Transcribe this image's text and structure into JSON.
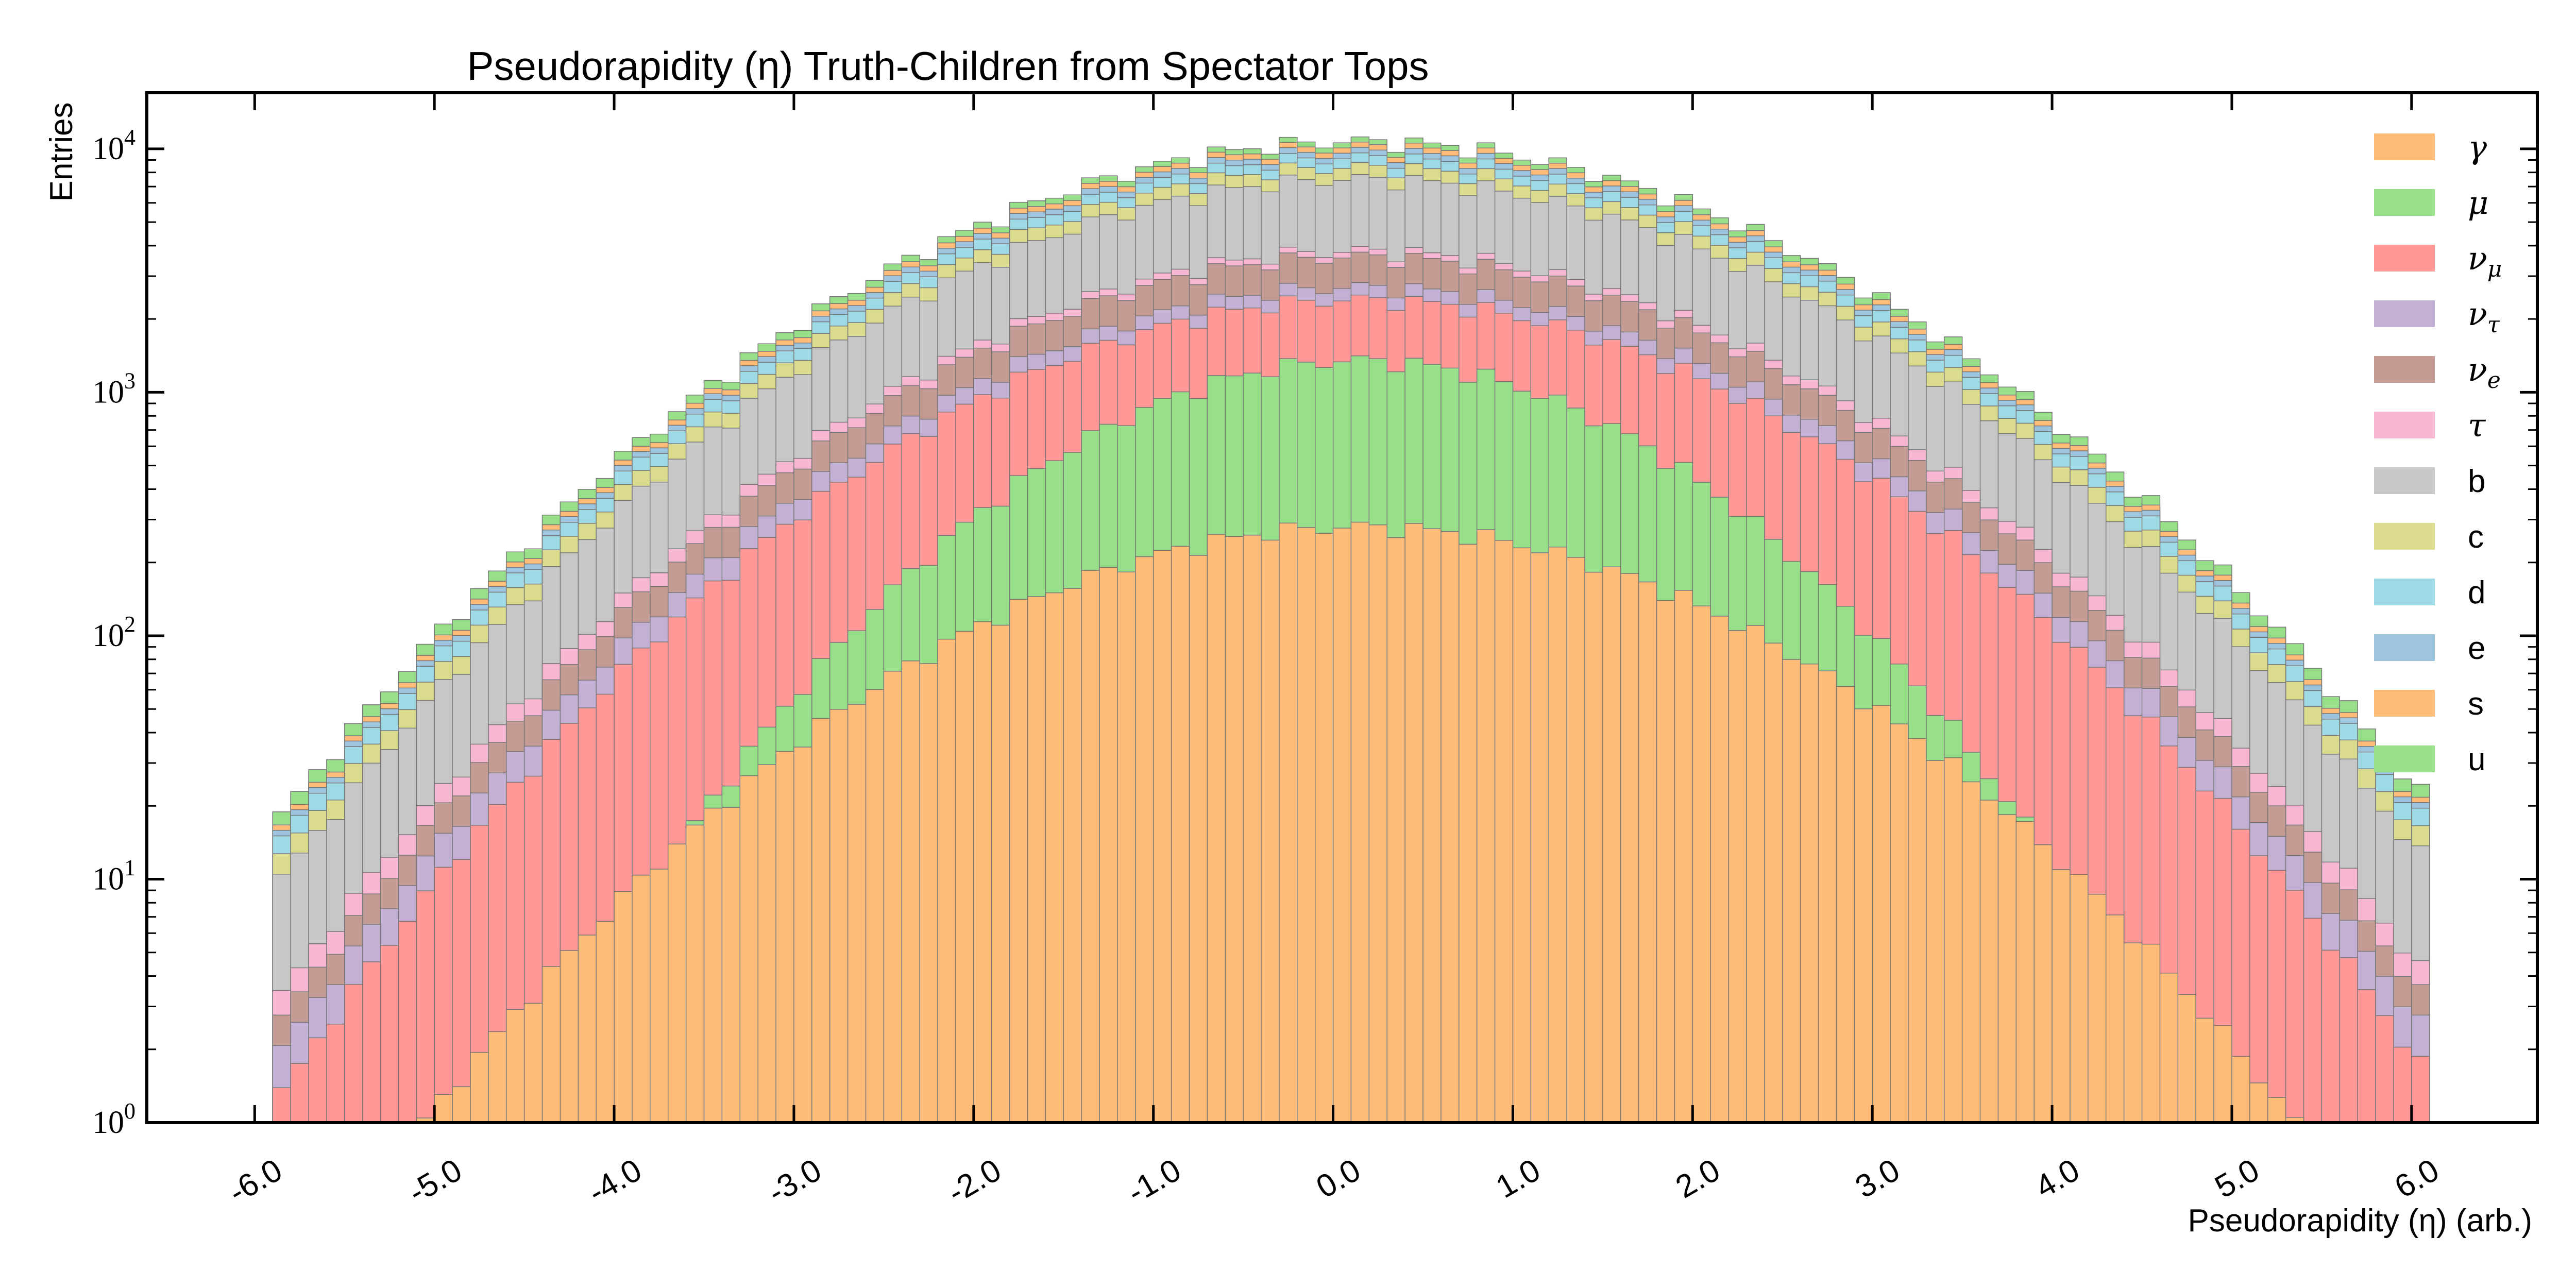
{
  "chart_data": {
    "type": "bar",
    "subtype": "stacked-histogram",
    "title": "Pseudorapidity (η) Truth-Children from Spectator Tops",
    "xlabel": "Pseudorapidity (η) (arb.)",
    "ylabel": "Entries",
    "yscale": "log",
    "ylim": [
      1,
      17000
    ],
    "xlim": [
      -6.6,
      6.7
    ],
    "bin_edges_range": [
      -5.9,
      6.1
    ],
    "grid": false,
    "legend_position": "top-right",
    "x_ticks": [
      "-6.0",
      "-5.0",
      "-4.0",
      "-3.0",
      "-2.0",
      "-1.0",
      "0.0",
      "1.0",
      "2.0",
      "3.0",
      "4.0",
      "5.0",
      "6.0"
    ],
    "x_tick_values": [
      -6,
      -5,
      -4,
      -3,
      -2,
      -1,
      0,
      1,
      2,
      3,
      4,
      5,
      6
    ],
    "y_ticks": [
      {
        "value": 1,
        "base": "10",
        "exp": "0"
      },
      {
        "value": 10,
        "base": "10",
        "exp": "1"
      },
      {
        "value": 100,
        "base": "10",
        "exp": "2"
      },
      {
        "value": 1000,
        "base": "10",
        "exp": "3"
      },
      {
        "value": 10000,
        "base": "10",
        "exp": "4"
      }
    ],
    "series": [
      {
        "name": "γ",
        "color": "#ffbb78"
      },
      {
        "name": "μ",
        "color": "#98df8a"
      },
      {
        "name": "νμ",
        "color": "#ff9896"
      },
      {
        "name": "ντ",
        "color": "#c5b0d5"
      },
      {
        "name": "νe",
        "color": "#c49c94"
      },
      {
        "name": "τ",
        "color": "#f7b6d2"
      },
      {
        "name": "b",
        "color": "#c7c7c7"
      },
      {
        "name": "c",
        "color": "#dbdb8d"
      },
      {
        "name": "d",
        "color": "#9edae5"
      },
      {
        "name": "e",
        "color": "#9ec5e0"
      },
      {
        "name": "s",
        "color": "#ffbb78"
      },
      {
        "name": "u",
        "color": "#98df8a"
      }
    ],
    "legend": [
      {
        "label": "γ",
        "math": true,
        "color": "#ffbb78"
      },
      {
        "label": "μ",
        "math": true,
        "color": "#98df8a"
      },
      {
        "label": "ν",
        "sub": "μ",
        "math": true,
        "color": "#ff9896"
      },
      {
        "label": "ν",
        "sub": "τ",
        "math": true,
        "color": "#c5b0d5"
      },
      {
        "label": "ν",
        "sub": "e",
        "math": true,
        "color": "#c49c94"
      },
      {
        "label": "τ",
        "math": true,
        "color": "#f7b6d2"
      },
      {
        "label": "b",
        "math": false,
        "color": "#c7c7c7"
      },
      {
        "label": "c",
        "math": false,
        "color": "#dbdb8d"
      },
      {
        "label": "d",
        "math": false,
        "color": "#9edae5"
      },
      {
        "label": "e",
        "math": false,
        "color": "#9ec5e0"
      },
      {
        "label": "s",
        "math": false,
        "color": "#ffbb78"
      },
      {
        "label": "u",
        "math": false,
        "color": "#98df8a"
      }
    ],
    "cumulative_layers": [
      {
        "top_of": "γ",
        "peak_value": 280
      },
      {
        "top_of": "μ",
        "peak_value": 1350
      },
      {
        "top_of": "νμ",
        "peak_value": 2400
      },
      {
        "top_of": "ντ",
        "peak_value": 2700
      },
      {
        "top_of": "νe",
        "peak_value": 3600
      },
      {
        "top_of": "τ",
        "peak_value": 3800
      },
      {
        "top_of": "b",
        "peak_value": 7500
      },
      {
        "top_of": "c",
        "peak_value": 8400
      },
      {
        "top_of": "d",
        "peak_value": 9200
      },
      {
        "top_of": "e",
        "peak_value": 9700
      },
      {
        "top_of": "s",
        "peak_value": 10200
      },
      {
        "top_of": "u",
        "peak_value": 10700
      }
    ]
  }
}
